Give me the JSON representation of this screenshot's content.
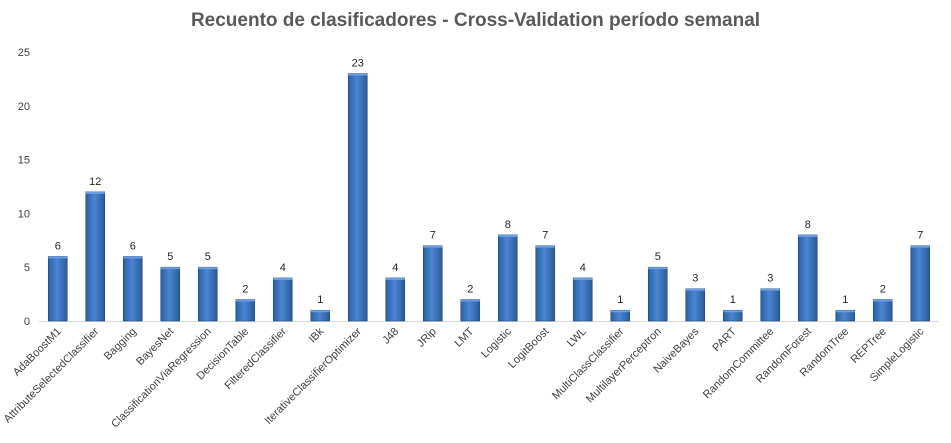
{
  "chart_data": {
    "type": "bar",
    "title": "Recuento de clasificadores - Cross-Validation período semanal",
    "xlabel": "",
    "ylabel": "",
    "ylim": [
      0,
      25
    ],
    "yticks": [
      0,
      5,
      10,
      15,
      20,
      25
    ],
    "grid": false,
    "legend": "none",
    "bar_color": "#3f78c8",
    "categories": [
      "AdaBoostM1",
      "AttributeSelectedClassifier",
      "Bagging",
      "BayesNet",
      "ClassificationViaRegression",
      "DecisionTable",
      "FilteredClassifier",
      "IBk",
      "IterativeClassifierOptimizer",
      "J48",
      "JRip",
      "LMT",
      "Logistic",
      "LogitBoost",
      "LWL",
      "MultiClassClassifier",
      "MultilayerPerceptron",
      "NaiveBayes",
      "PART",
      "RandomCommittee",
      "RandomForest",
      "RandomTree",
      "REPTree",
      "SimpleLogistic"
    ],
    "values": [
      6,
      12,
      6,
      5,
      5,
      2,
      4,
      1,
      23,
      4,
      7,
      2,
      8,
      7,
      4,
      1,
      5,
      3,
      1,
      3,
      8,
      1,
      2,
      7
    ]
  }
}
